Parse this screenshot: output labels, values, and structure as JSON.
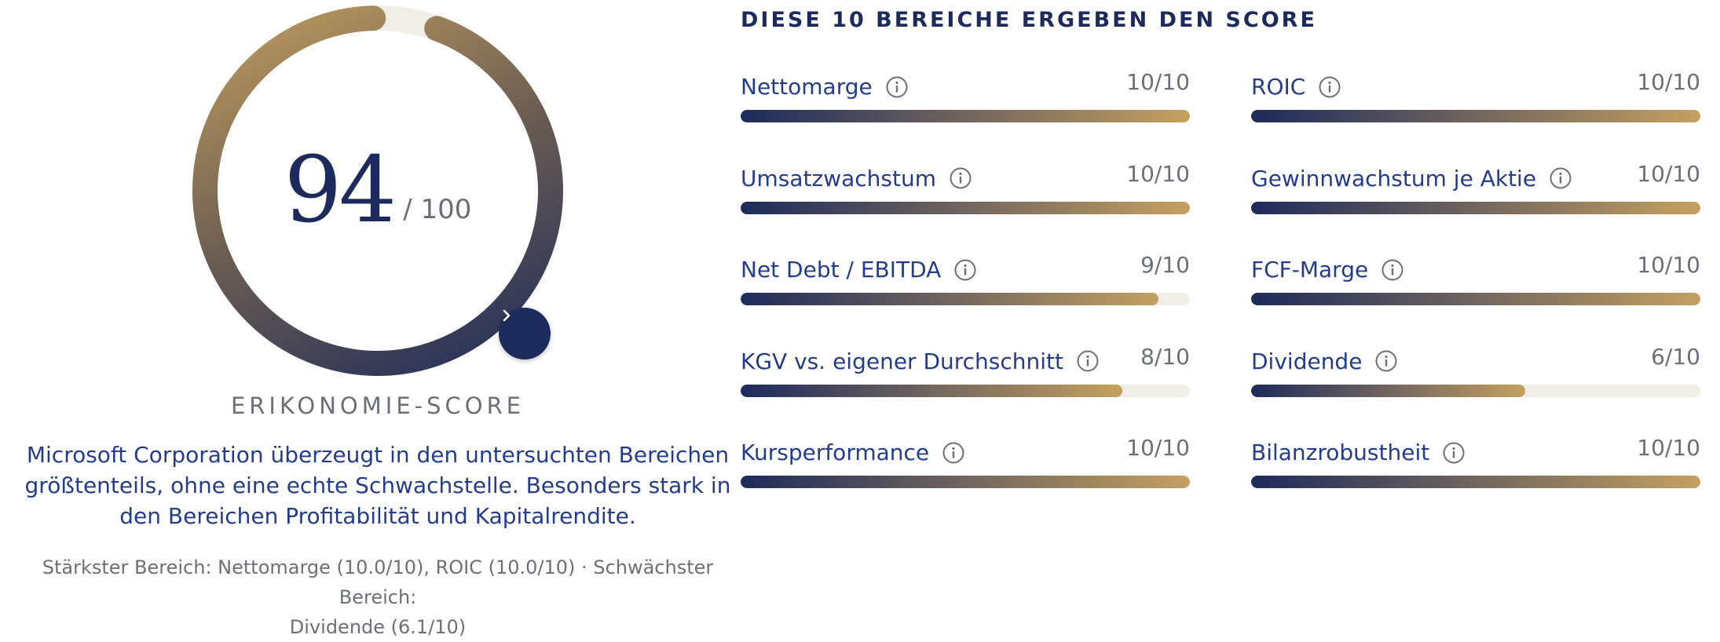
{
  "score": {
    "value": "94",
    "max_label": "/ 100",
    "label": "ERIKONOMIE-SCORE",
    "fraction": 0.94
  },
  "summary": "Microsoft Corporation überzeugt in den untersuchten Bereichen größtenteils, ohne eine echte Schwachstelle. Besonders stark in den Bereichen Profitabilität und Kapitalrendite.",
  "strength_line_1": "Stärkster Bereich: Nettomarge (10.0/10), ROIC (10.0/10) · Schwächster Bereich:",
  "strength_line_2": "Dividende (6.1/10)",
  "section_title": "DIESE 10 BEREICHE ERGEBEN DEN SCORE",
  "metrics": [
    {
      "label": "Nettomarge",
      "score_text": "10/10",
      "value": 10
    },
    {
      "label": "ROIC",
      "score_text": "10/10",
      "value": 10
    },
    {
      "label": "Umsatzwachstum",
      "score_text": "10/10",
      "value": 10
    },
    {
      "label": "Gewinnwachstum je Aktie",
      "score_text": "10/10",
      "value": 10
    },
    {
      "label": "Net Debt / EBITDA",
      "score_text": "9/10",
      "value": 9.3
    },
    {
      "label": "FCF-Marge",
      "score_text": "10/10",
      "value": 10
    },
    {
      "label": "KGV vs. eigener Durchschnitt",
      "score_text": "8/10",
      "value": 8.5
    },
    {
      "label": "Dividende",
      "score_text": "6/10",
      "value": 6.1
    },
    {
      "label": "Kursperformance",
      "score_text": "10/10",
      "value": 10
    },
    {
      "label": "Bilanzrobustheit",
      "score_text": "10/10",
      "value": 10
    }
  ],
  "colors": {
    "navy": "#1d2a5c",
    "gold": "#c5a060",
    "track": "#f1eee7",
    "text_blue": "#233c8c",
    "muted": "#6b6f78"
  },
  "icons": {
    "info": "info-circle-icon",
    "button": "chevron-right-icon"
  }
}
